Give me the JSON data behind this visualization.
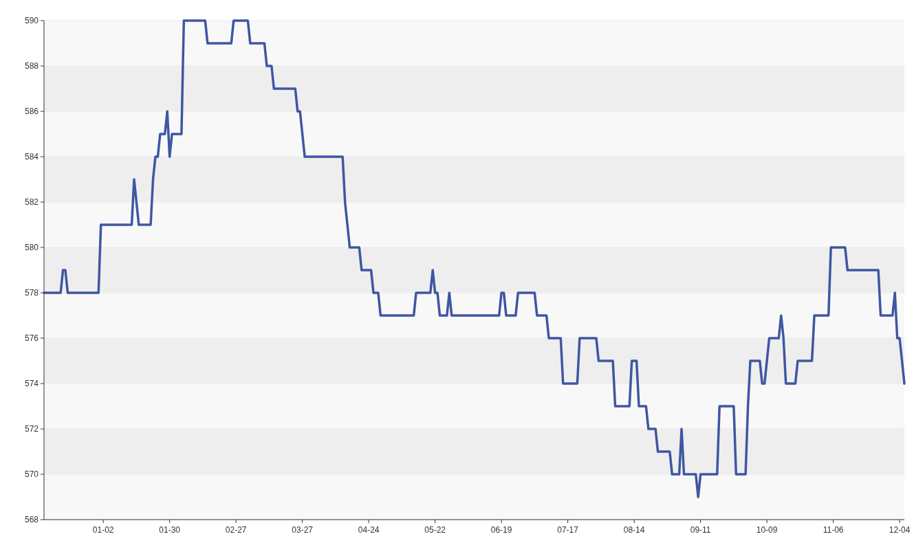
{
  "chart_data": {
    "type": "line",
    "grid": "y",
    "line_style": "solid",
    "categories": [
      null,
      null,
      null,
      null,
      null,
      null,
      null,
      null,
      null,
      null,
      null,
      null,
      null,
      null,
      null,
      null,
      null,
      null,
      null,
      null,
      null,
      null,
      null,
      null,
      null,
      "01-02",
      null,
      null,
      null,
      null,
      null,
      null,
      null,
      null,
      null,
      null,
      null,
      null,
      null,
      null,
      null,
      null,
      null,
      null,
      null,
      null,
      null,
      null,
      null,
      null,
      null,
      null,
      null,
      "01-30",
      null,
      null,
      null,
      null,
      null,
      null,
      null,
      null,
      null,
      null,
      null,
      null,
      null,
      null,
      null,
      null,
      null,
      null,
      null,
      null,
      null,
      null,
      null,
      null,
      null,
      null,
      null,
      "02-27",
      null,
      null,
      null,
      null,
      null,
      null,
      null,
      null,
      null,
      null,
      null,
      null,
      null,
      null,
      null,
      null,
      null,
      null,
      null,
      null,
      null,
      null,
      null,
      null,
      null,
      null,
      null,
      "03-27",
      null,
      null,
      null,
      null,
      null,
      null,
      null,
      null,
      null,
      null,
      null,
      null,
      null,
      null,
      null,
      null,
      null,
      null,
      null,
      null,
      null,
      null,
      null,
      null,
      null,
      null,
      null,
      "04-24",
      null,
      null,
      null,
      null,
      null,
      null,
      null,
      null,
      null,
      null,
      null,
      null,
      null,
      null,
      null,
      null,
      null,
      null,
      null,
      null,
      null,
      null,
      null,
      null,
      null,
      null,
      null,
      "05-22",
      null,
      null,
      null,
      null,
      null,
      null,
      null,
      null,
      null,
      null,
      null,
      null,
      null,
      null,
      null,
      null,
      null,
      null,
      null,
      null,
      null,
      null,
      null,
      null,
      null,
      null,
      null,
      "06-19",
      null,
      null,
      null,
      null,
      null,
      null,
      null,
      null,
      null,
      null,
      null,
      null,
      null,
      null,
      null,
      null,
      null,
      null,
      null,
      null,
      null,
      null,
      null,
      null,
      null,
      null,
      null,
      "07-17",
      null,
      null,
      null,
      null,
      null,
      null,
      null,
      null,
      null,
      null,
      null,
      null,
      null,
      null,
      null,
      null,
      null,
      null,
      null,
      null,
      null,
      null,
      null,
      null,
      null,
      null,
      null,
      "08-14",
      null,
      null,
      null,
      null,
      null,
      null,
      null,
      null,
      null,
      null,
      null,
      null,
      null,
      null,
      null,
      null,
      null,
      null,
      null,
      null,
      null,
      null,
      null,
      null,
      null,
      null,
      null,
      "09-11",
      null,
      null,
      null,
      null,
      null,
      null,
      null,
      null,
      null,
      null,
      null,
      null,
      null,
      null,
      null,
      null,
      null,
      null,
      null,
      null,
      null,
      null,
      null,
      null,
      null,
      null,
      null,
      "10-09",
      null,
      null,
      null,
      null,
      null,
      null,
      null,
      null,
      null,
      null,
      null,
      null,
      null,
      null,
      null,
      null,
      null,
      null,
      null,
      null,
      null,
      null,
      null,
      null,
      null,
      null,
      null,
      "11-06",
      null,
      null,
      null,
      null,
      null,
      null,
      null,
      null,
      null,
      null,
      null,
      null,
      null,
      null,
      null,
      null,
      null,
      null,
      null,
      null,
      null,
      null,
      null,
      null,
      null,
      null,
      null,
      "12-04",
      null,
      null
    ],
    "series": [
      {
        "color": "#3f56a3",
        "values": [
          578,
          578,
          578,
          578,
          578,
          578,
          578,
          578,
          579,
          579,
          578,
          578,
          578,
          578,
          578,
          578,
          578,
          578,
          578,
          578,
          578,
          578,
          578,
          578,
          581,
          581,
          581,
          581,
          581,
          581,
          581,
          581,
          581,
          581,
          581,
          581,
          581,
          581,
          583,
          582,
          581,
          581,
          581,
          581,
          581,
          581,
          583,
          584,
          584,
          585,
          585,
          585,
          586,
          584,
          585,
          585,
          585,
          585,
          585,
          590,
          590,
          590,
          590,
          590,
          590,
          590,
          590,
          590,
          590,
          589,
          589,
          589,
          589,
          589,
          589,
          589,
          589,
          589,
          589,
          589,
          590,
          590,
          590,
          590,
          590,
          590,
          590,
          589,
          589,
          589,
          589,
          589,
          589,
          589,
          588,
          588,
          588,
          587,
          587,
          587,
          587,
          587,
          587,
          587,
          587,
          587,
          587,
          586,
          586,
          585,
          584,
          584,
          584,
          584,
          584,
          584,
          584,
          584,
          584,
          584,
          584,
          584,
          584,
          584,
          584,
          584,
          584,
          582,
          581,
          580,
          580,
          580,
          580,
          580,
          579,
          579,
          579,
          579,
          579,
          578,
          578,
          578,
          577,
          577,
          577,
          577,
          577,
          577,
          577,
          577,
          577,
          577,
          577,
          577,
          577,
          577,
          577,
          578,
          578,
          578,
          578,
          578,
          578,
          578,
          579,
          578,
          578,
          577,
          577,
          577,
          577,
          578,
          577,
          577,
          577,
          577,
          577,
          577,
          577,
          577,
          577,
          577,
          577,
          577,
          577,
          577,
          577,
          577,
          577,
          577,
          577,
          577,
          577,
          578,
          578,
          577,
          577,
          577,
          577,
          577,
          578,
          578,
          578,
          578,
          578,
          578,
          578,
          578,
          577,
          577,
          577,
          577,
          577,
          576,
          576,
          576,
          576,
          576,
          576,
          574,
          574,
          574,
          574,
          574,
          574,
          574,
          576,
          576,
          576,
          576,
          576,
          576,
          576,
          576,
          575,
          575,
          575,
          575,
          575,
          575,
          575,
          573,
          573,
          573,
          573,
          573,
          573,
          573,
          575,
          575,
          575,
          573,
          573,
          573,
          573,
          572,
          572,
          572,
          572,
          571,
          571,
          571,
          571,
          571,
          571,
          570,
          570,
          570,
          570,
          572,
          570,
          570,
          570,
          570,
          570,
          570,
          569,
          570,
          570,
          570,
          570,
          570,
          570,
          570,
          570,
          573,
          573,
          573,
          573,
          573,
          573,
          573,
          570,
          570,
          570,
          570,
          570,
          573,
          575,
          575,
          575,
          575,
          575,
          574,
          574,
          575,
          576,
          576,
          576,
          576,
          576,
          577,
          576,
          574,
          574,
          574,
          574,
          574,
          575,
          575,
          575,
          575,
          575,
          575,
          575,
          577,
          577,
          577,
          577,
          577,
          577,
          577,
          580,
          580,
          580,
          580,
          580,
          580,
          580,
          579,
          579,
          579,
          579,
          579,
          579,
          579,
          579,
          579,
          579,
          579,
          579,
          579,
          579,
          577,
          577,
          577,
          577,
          577,
          577,
          578,
          576,
          576,
          575,
          574
        ]
      }
    ],
    "ylim": [
      568,
      590
    ],
    "yticks": [
      568,
      570,
      572,
      574,
      576,
      578,
      580,
      582,
      584,
      586,
      588,
      590
    ]
  }
}
